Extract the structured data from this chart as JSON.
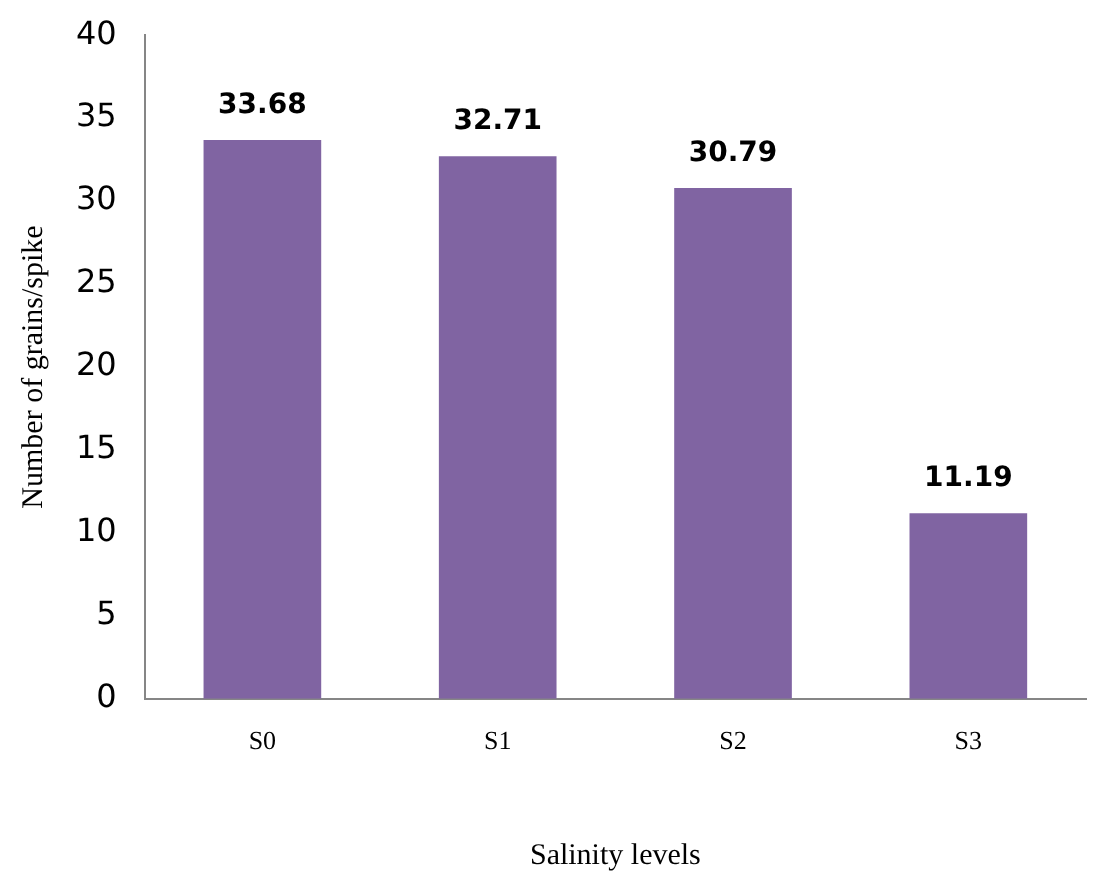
{
  "chart_data": {
    "type": "bar",
    "xlabel": "Salinity levels",
    "ylabel": "Number of grains/spike",
    "categories": [
      "S0",
      "S1",
      "S2",
      "S3"
    ],
    "values": [
      33.68,
      32.71,
      30.79,
      11.19
    ],
    "color": "#8064a2",
    "ylim": [
      0,
      40
    ],
    "yticks": [
      0,
      5,
      10,
      15,
      20,
      25,
      30,
      35,
      40
    ],
    "grid": false,
    "legend": false,
    "data_labels": true
  }
}
